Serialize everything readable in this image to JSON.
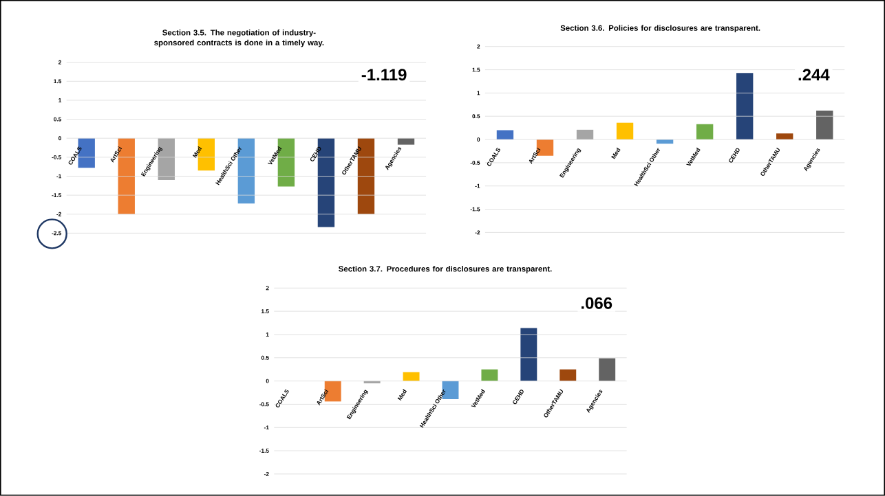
{
  "chart_data": [
    {
      "type": "bar",
      "title": "Section 3.5. The negotiation  of industry-sponsored contracts is done in a timely way.",
      "categories": [
        "COALS",
        "ArtSci",
        "Engineering",
        "Med",
        "HealthSci Other",
        "VetMed",
        "CEHD",
        "OtherTAMU",
        "Agencies"
      ],
      "values": [
        -0.78,
        -2.0,
        -1.1,
        -0.85,
        -1.72,
        -1.27,
        -2.34,
        -2.0,
        -0.17
      ],
      "colors": [
        "#4472c4",
        "#ed7d31",
        "#a5a5a5",
        "#ffc000",
        "#5b9bd5",
        "#70ad47",
        "#264478",
        "#9e480e",
        "#636363"
      ],
      "ylim": [
        -2.5,
        2
      ],
      "yticks": [
        2,
        1.5,
        1,
        0.5,
        0,
        -0.5,
        -1,
        -1.5,
        -2,
        -2.5
      ],
      "grid": "y",
      "annotations": [
        "-1.119"
      ]
    },
    {
      "type": "bar",
      "title": "Section 3.6. Policies for disclosures are transparent.",
      "categories": [
        "COALS",
        "ArtSci",
        "Engineering",
        "Med",
        "HealthSci Other",
        "VetMed",
        "CEHD",
        "OtherTAMU",
        "Agencies"
      ],
      "values": [
        0.2,
        -0.35,
        0.21,
        0.36,
        -0.09,
        0.33,
        1.43,
        0.13,
        0.62
      ],
      "colors": [
        "#4472c4",
        "#ed7d31",
        "#a5a5a5",
        "#ffc000",
        "#5b9bd5",
        "#70ad47",
        "#264478",
        "#9e480e",
        "#636363"
      ],
      "ylim": [
        -2,
        2
      ],
      "yticks": [
        2,
        1.5,
        1,
        0.5,
        0,
        -0.5,
        -1,
        -1.5,
        -2
      ],
      "grid": "y",
      "annotations": [
        ".244"
      ]
    },
    {
      "type": "bar",
      "title": "Section 3.7. Procedures for disclosures are transparent.",
      "categories": [
        "COALS",
        "ArtSci",
        "Engineering",
        "Med",
        "HealthSci Other",
        "VetMed",
        "CEHD",
        "OtherTAMU",
        "Agencies"
      ],
      "values": [
        0,
        -0.44,
        -0.05,
        0.19,
        -0.39,
        0.25,
        1.14,
        0.25,
        0.49
      ],
      "colors": [
        "#4472c4",
        "#ed7d31",
        "#a5a5a5",
        "#ffc000",
        "#5b9bd5",
        "#70ad47",
        "#264478",
        "#9e480e",
        "#636363"
      ],
      "ylim": [
        -2,
        2
      ],
      "yticks": [
        2,
        1.5,
        1,
        0.5,
        0,
        -0.5,
        -1,
        -1.5,
        -2
      ],
      "grid": "y",
      "annotations": [
        ".066"
      ]
    }
  ]
}
